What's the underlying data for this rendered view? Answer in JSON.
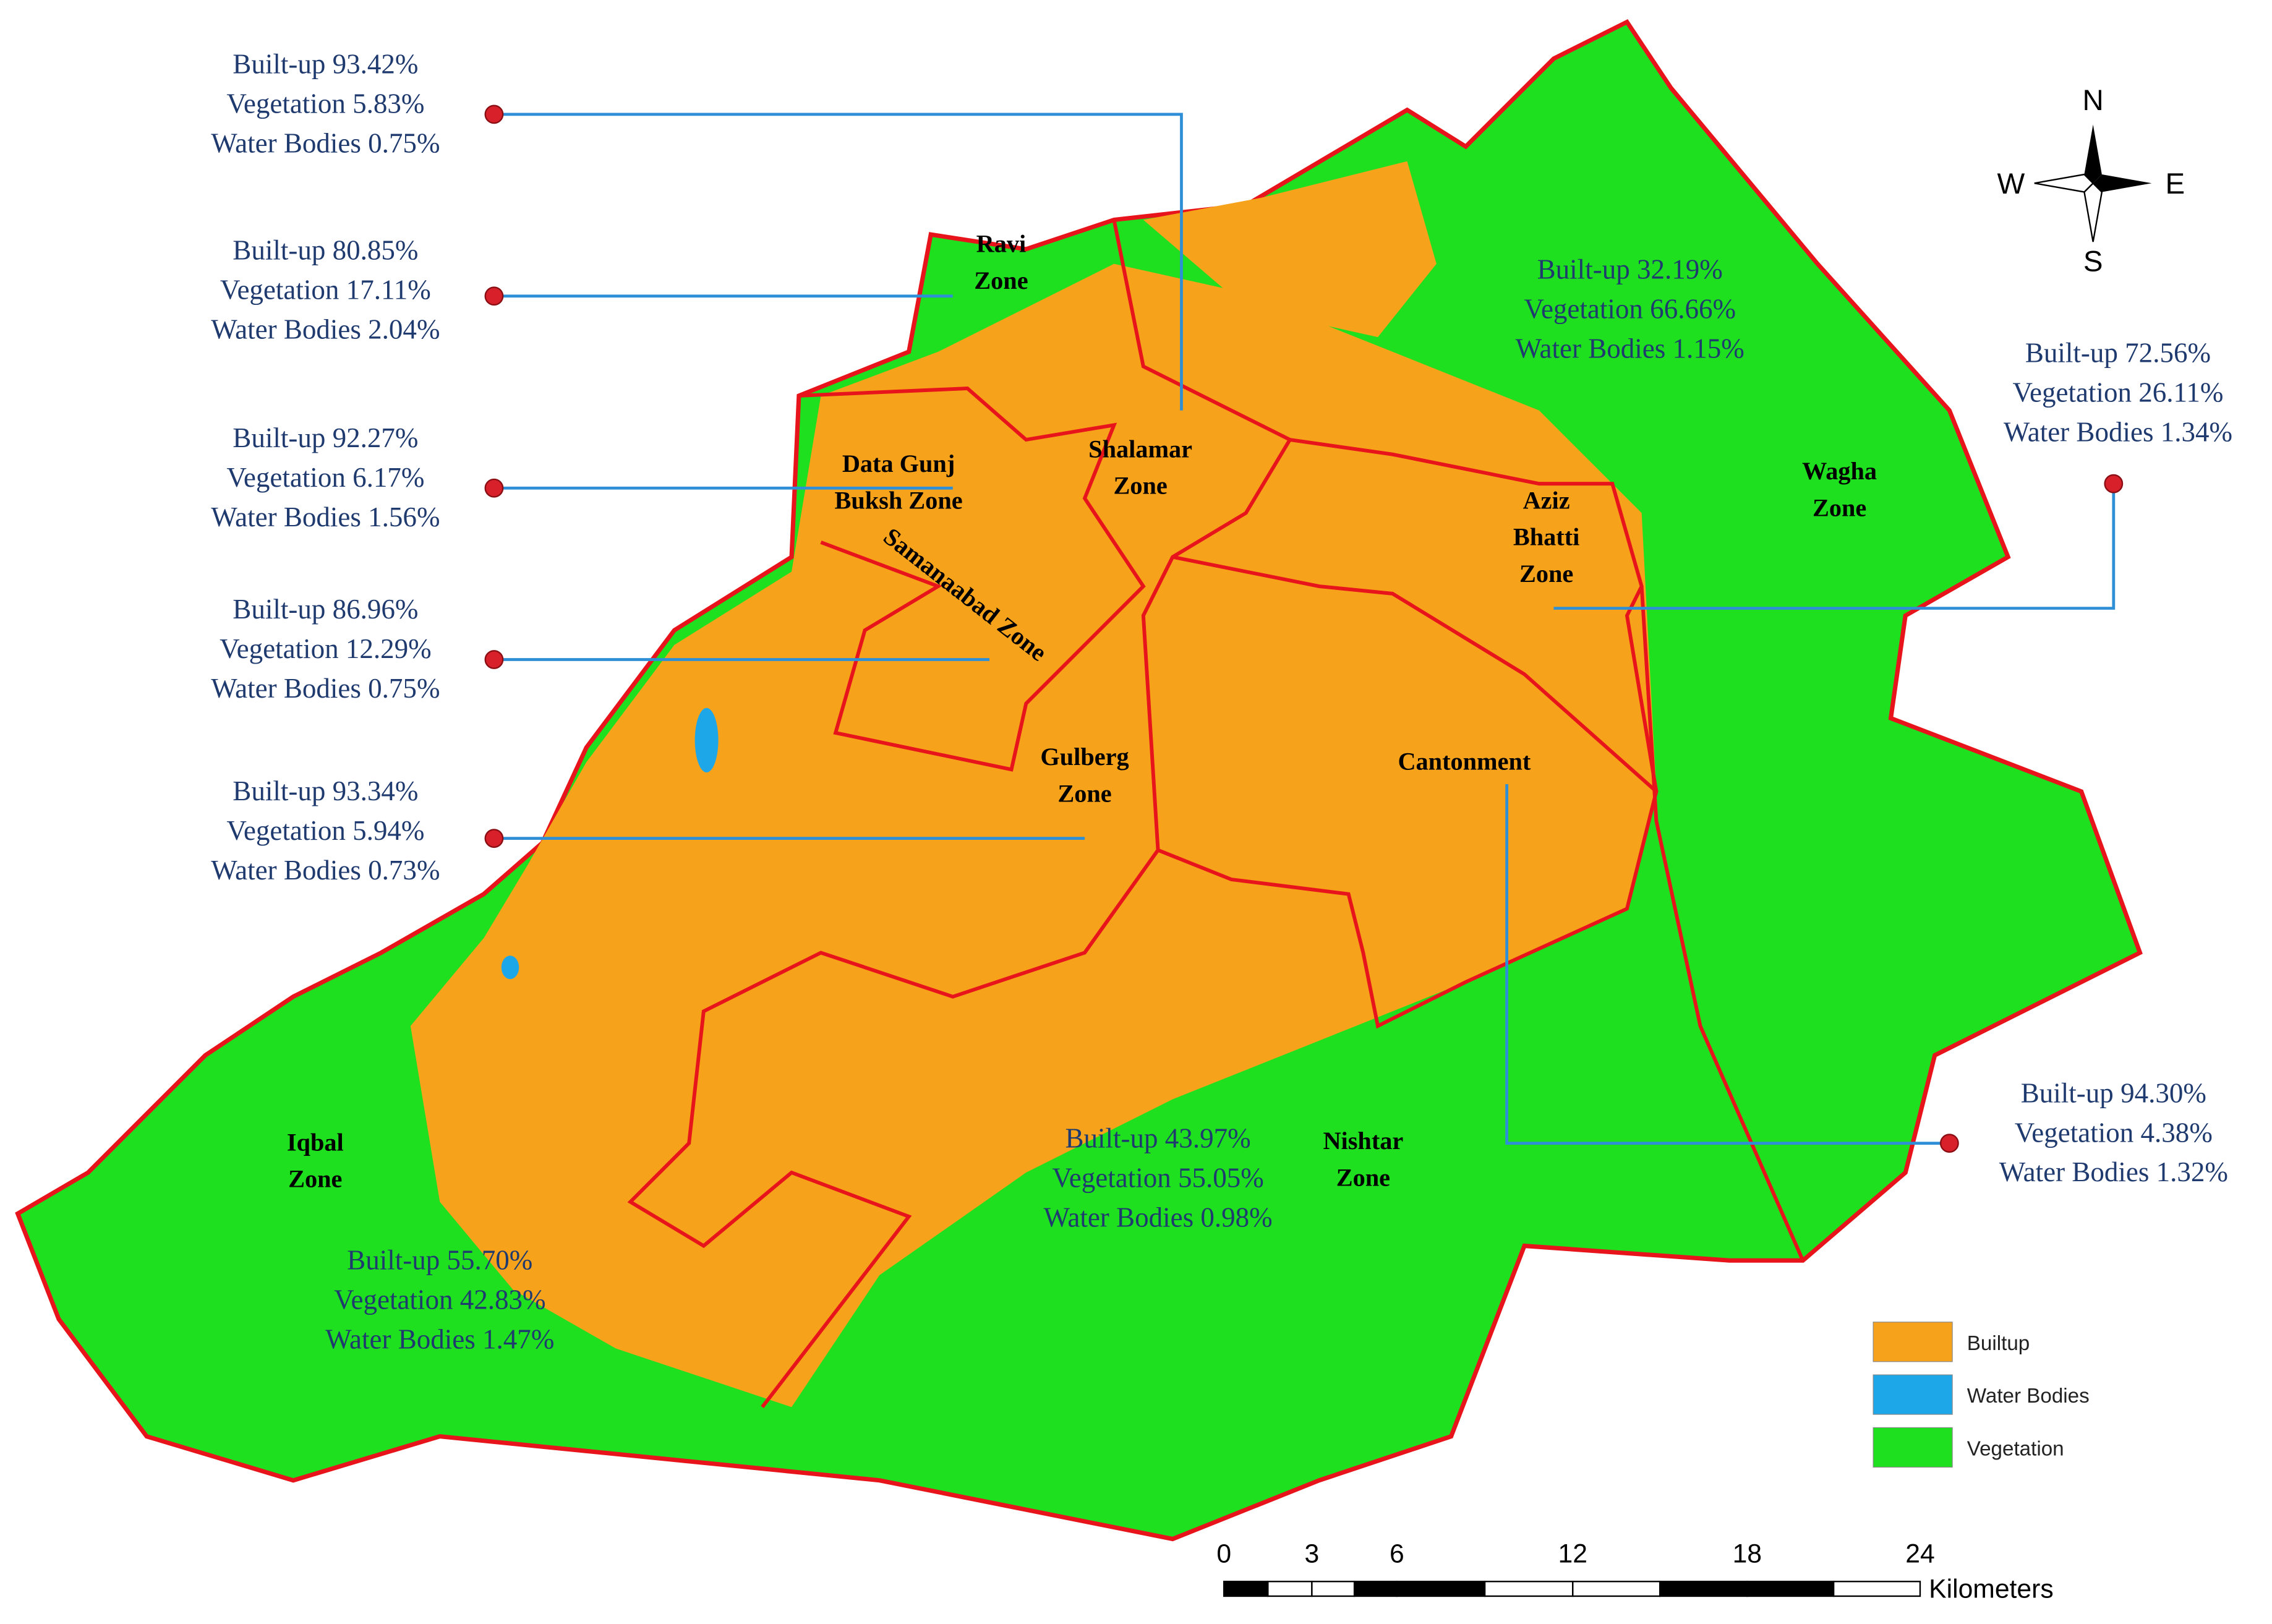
{
  "compass": {
    "north": "N",
    "east": "E",
    "south": "S",
    "west": "W"
  },
  "zones": [
    {
      "lines": [
        "Ravi",
        "Zone"
      ]
    },
    {
      "lines": [
        "Shalamar",
        "Zone"
      ]
    },
    {
      "lines": [
        "Data Gunj",
        "Buksh Zone"
      ]
    },
    {
      "lines": [
        "Samanaabad Zone"
      ]
    },
    {
      "lines": [
        "Aziz",
        "Bhatti",
        "Zone"
      ]
    },
    {
      "lines": [
        "Wagha",
        "Zone"
      ]
    },
    {
      "lines": [
        "Gulberg",
        "Zone"
      ]
    },
    {
      "lines": [
        "Cantonment"
      ]
    },
    {
      "lines": [
        "Iqbal",
        "Zone"
      ]
    },
    {
      "lines": [
        "Nishtar",
        "Zone"
      ]
    }
  ],
  "callouts": [
    {
      "lines": [
        "Built-up  93.42%",
        "Vegetation 5.83%",
        "Water Bodies 0.75%"
      ]
    },
    {
      "lines": [
        "Built-up  80.85%",
        "Vegetation 17.11%",
        "Water Bodies 2.04%"
      ]
    },
    {
      "lines": [
        "Built-up  92.27%",
        "Vegetation 6.17%",
        "Water Bodies 1.56%"
      ]
    },
    {
      "lines": [
        "Built-up  86.96%",
        "Vegetation 12.29%",
        "Water Bodies 0.75%"
      ]
    },
    {
      "lines": [
        "Built-up  93.34%",
        "Vegetation 5.94%",
        "Water Bodies 0.73%"
      ]
    },
    {
      "lines": [
        "Built-up  32.19%",
        "Vegetation 66.66%",
        "Water Bodies 1.15%"
      ]
    },
    {
      "lines": [
        "Built-up  72.56%",
        "Vegetation 26.11%",
        "Water Bodies 1.34%"
      ]
    },
    {
      "lines": [
        "Built-up  94.30%",
        "Vegetation 4.38%",
        "Water Bodies 1.32%"
      ]
    },
    {
      "lines": [
        "Built-up 43.97%",
        "Vegetation 55.05%",
        "Water Bodies 0.98%"
      ]
    },
    {
      "lines": [
        "Built-up  55.70%",
        "Vegetation 42.83%",
        "Water Bodies 1.47%"
      ]
    }
  ],
  "legend": [
    {
      "label": "Builtup",
      "color": "#f7a21b"
    },
    {
      "label": "Water Bodies",
      "color": "#1ea7e8"
    },
    {
      "label": "Vegetation",
      "color": "#1fe01f"
    }
  ],
  "scale_bar": {
    "ticks": [
      "0",
      "3",
      "6",
      "12",
      "18",
      "24"
    ],
    "unit": "Kilometers"
  }
}
